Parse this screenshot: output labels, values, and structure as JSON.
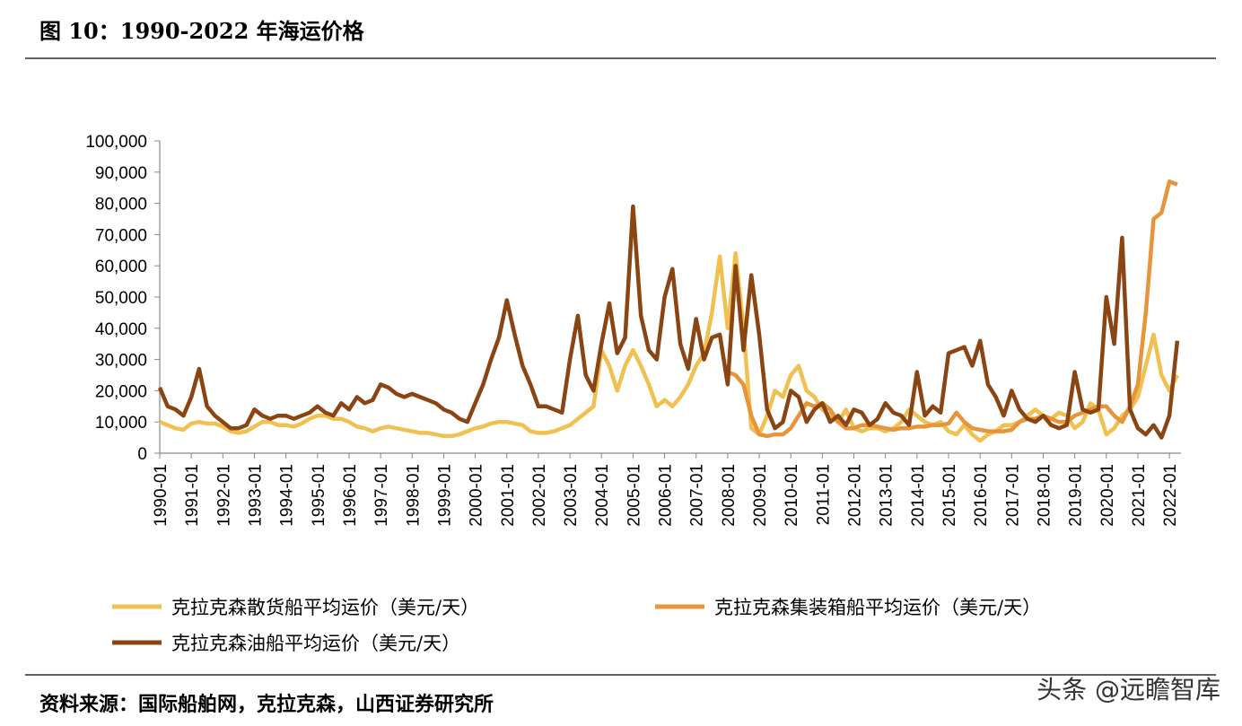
{
  "header": {
    "title": "图 10：1990-2022 年海运价格"
  },
  "footer": {
    "source": "资料来源：国际船舶网，克拉克森，山西证券研究所",
    "watermark": "头条 @远瞻智库"
  },
  "chart_data": {
    "type": "line",
    "categories": [
      "1990-01",
      null,
      null,
      null,
      "1991-01",
      null,
      null,
      null,
      "1992-01",
      null,
      null,
      null,
      "1993-01",
      null,
      null,
      null,
      "1994-01",
      null,
      null,
      null,
      "1995-01",
      null,
      null,
      null,
      "1996-01",
      null,
      null,
      null,
      "1997-01",
      null,
      null,
      null,
      "1998-01",
      null,
      null,
      null,
      "1999-01",
      null,
      null,
      null,
      "2000-01",
      null,
      null,
      null,
      "2001-01",
      null,
      null,
      null,
      "2002-01",
      null,
      null,
      null,
      "2003-01",
      null,
      null,
      null,
      "2004-01",
      null,
      null,
      null,
      "2005-01",
      null,
      null,
      null,
      "2006-01",
      null,
      null,
      null,
      "2007-01",
      null,
      null,
      null,
      "2008-01",
      null,
      null,
      null,
      "2009-01",
      null,
      null,
      null,
      "2010-01",
      null,
      null,
      null,
      "2011-01",
      null,
      null,
      null,
      "2012-01",
      null,
      null,
      null,
      "2013-01",
      null,
      null,
      null,
      "2014-01",
      null,
      null,
      null,
      "2015-01",
      null,
      null,
      null,
      "2016-01",
      null,
      null,
      null,
      "2017-01",
      null,
      null,
      null,
      "2018-01",
      null,
      null,
      null,
      "2019-01",
      null,
      null,
      null,
      "2020-01",
      null,
      null,
      null,
      "2021-01",
      null,
      null,
      null,
      "2022-01",
      null
    ],
    "ylim": [
      0,
      100000
    ],
    "yticks": [
      0,
      {
        "value": 10000,
        "label": "10,000"
      },
      {
        "value": 20000,
        "label": "20,000"
      },
      {
        "value": 30000,
        "label": "30,000"
      },
      {
        "value": 40000,
        "label": "40,000"
      },
      {
        "value": 50000,
        "label": "50,000"
      },
      {
        "value": 60000,
        "label": "60,000"
      },
      {
        "value": 70000,
        "label": "70,000"
      },
      {
        "value": 80000,
        "label": "80,000"
      },
      {
        "value": 90000,
        "label": "90,000"
      },
      {
        "value": 100000,
        "label": "100,000"
      }
    ],
    "series": [
      {
        "name": "克拉克森散货船平均运价（美元/天）",
        "color": "#f0c050",
        "values": [
          10000,
          9000,
          8000,
          7500,
          9500,
          10000,
          9500,
          9500,
          8500,
          7000,
          6500,
          7000,
          8500,
          10000,
          10000,
          9000,
          9000,
          8500,
          9500,
          11000,
          12000,
          12000,
          11000,
          11000,
          10000,
          8500,
          8000,
          7000,
          8000,
          8500,
          8000,
          7500,
          7000,
          6500,
          6500,
          6000,
          5500,
          5500,
          6000,
          7000,
          8000,
          8500,
          9500,
          10000,
          10000,
          9500,
          9000,
          7000,
          6500,
          6500,
          7000,
          8000,
          9000,
          11000,
          13000,
          15000,
          33000,
          28000,
          20000,
          28000,
          33000,
          28000,
          22000,
          15000,
          17000,
          15000,
          18000,
          22000,
          28000,
          32000,
          45000,
          63000,
          40000,
          64000,
          40000,
          8000,
          6000,
          12000,
          20000,
          18000,
          25000,
          28000,
          20000,
          18000,
          14000,
          12000,
          10000,
          14000,
          8000,
          7000,
          8000,
          8000,
          7000,
          8000,
          10000,
          14000,
          12000,
          10000,
          9000,
          10000,
          7000,
          6000,
          9000,
          6000,
          4000,
          6000,
          7000,
          9000,
          9000,
          10000,
          12000,
          14000,
          12000,
          11000,
          13000,
          12000,
          8000,
          10000,
          16000,
          14000,
          6000,
          8000,
          12000,
          14000,
          18000,
          28000,
          38000,
          25000,
          20000,
          25000
        ]
      },
      {
        "name": "克拉克森集装箱船平均运价（美元/天）",
        "color": "#e8943a",
        "values": [
          null,
          null,
          null,
          null,
          null,
          null,
          null,
          null,
          null,
          null,
          null,
          null,
          null,
          null,
          null,
          null,
          null,
          null,
          null,
          null,
          null,
          null,
          null,
          null,
          null,
          null,
          null,
          null,
          null,
          null,
          null,
          null,
          null,
          null,
          null,
          null,
          null,
          null,
          null,
          null,
          null,
          null,
          null,
          null,
          null,
          null,
          null,
          null,
          null,
          null,
          null,
          null,
          null,
          null,
          null,
          null,
          null,
          null,
          null,
          null,
          null,
          null,
          null,
          null,
          null,
          null,
          null,
          null,
          null,
          null,
          null,
          null,
          26000,
          25000,
          22000,
          12000,
          6000,
          5500,
          6000,
          6000,
          8000,
          12000,
          16000,
          15000,
          16000,
          14000,
          10000,
          8000,
          8000,
          9000,
          9000,
          8500,
          8000,
          7500,
          8000,
          8000,
          8500,
          8500,
          9000,
          9000,
          9500,
          13000,
          10000,
          8000,
          7500,
          7000,
          7000,
          7000,
          7500,
          10000,
          11000,
          11000,
          12000,
          11000,
          10000,
          10000,
          12000,
          13000,
          14000,
          15000,
          15000,
          12000,
          10000,
          15000,
          22000,
          45000,
          75000,
          77000,
          87000,
          86000
        ]
      },
      {
        "name": "克拉克森油船平均运价（美元/天）",
        "color": "#8b4513",
        "values": [
          21000,
          15000,
          14000,
          12000,
          18000,
          27000,
          15000,
          12000,
          10000,
          8000,
          8000,
          9000,
          14000,
          12000,
          11000,
          12000,
          12000,
          11000,
          12000,
          13000,
          15000,
          13000,
          12000,
          16000,
          14000,
          18000,
          16000,
          17000,
          22000,
          21000,
          19000,
          18000,
          19000,
          18000,
          17000,
          16000,
          14000,
          13000,
          11000,
          10000,
          16000,
          22000,
          30000,
          37000,
          49000,
          38000,
          28000,
          22000,
          15000,
          15000,
          14000,
          13000,
          30000,
          44000,
          25000,
          20000,
          35000,
          48000,
          32000,
          37000,
          79000,
          44000,
          33000,
          30000,
          50000,
          59000,
          35000,
          27000,
          43000,
          30000,
          37000,
          38000,
          22000,
          60000,
          33000,
          57000,
          38000,
          14000,
          8000,
          10000,
          20000,
          18000,
          10000,
          14000,
          16000,
          10000,
          12000,
          9000,
          14000,
          13000,
          9000,
          11000,
          16000,
          13000,
          12000,
          9000,
          26000,
          12000,
          15000,
          13000,
          32000,
          33000,
          34000,
          28000,
          36000,
          22000,
          18000,
          12000,
          20000,
          14000,
          11000,
          10000,
          12000,
          9000,
          8000,
          9000,
          26000,
          14000,
          13000,
          14000,
          50000,
          35000,
          69000,
          14000,
          8000,
          6000,
          9000,
          5000,
          12000,
          36000
        ]
      }
    ]
  }
}
